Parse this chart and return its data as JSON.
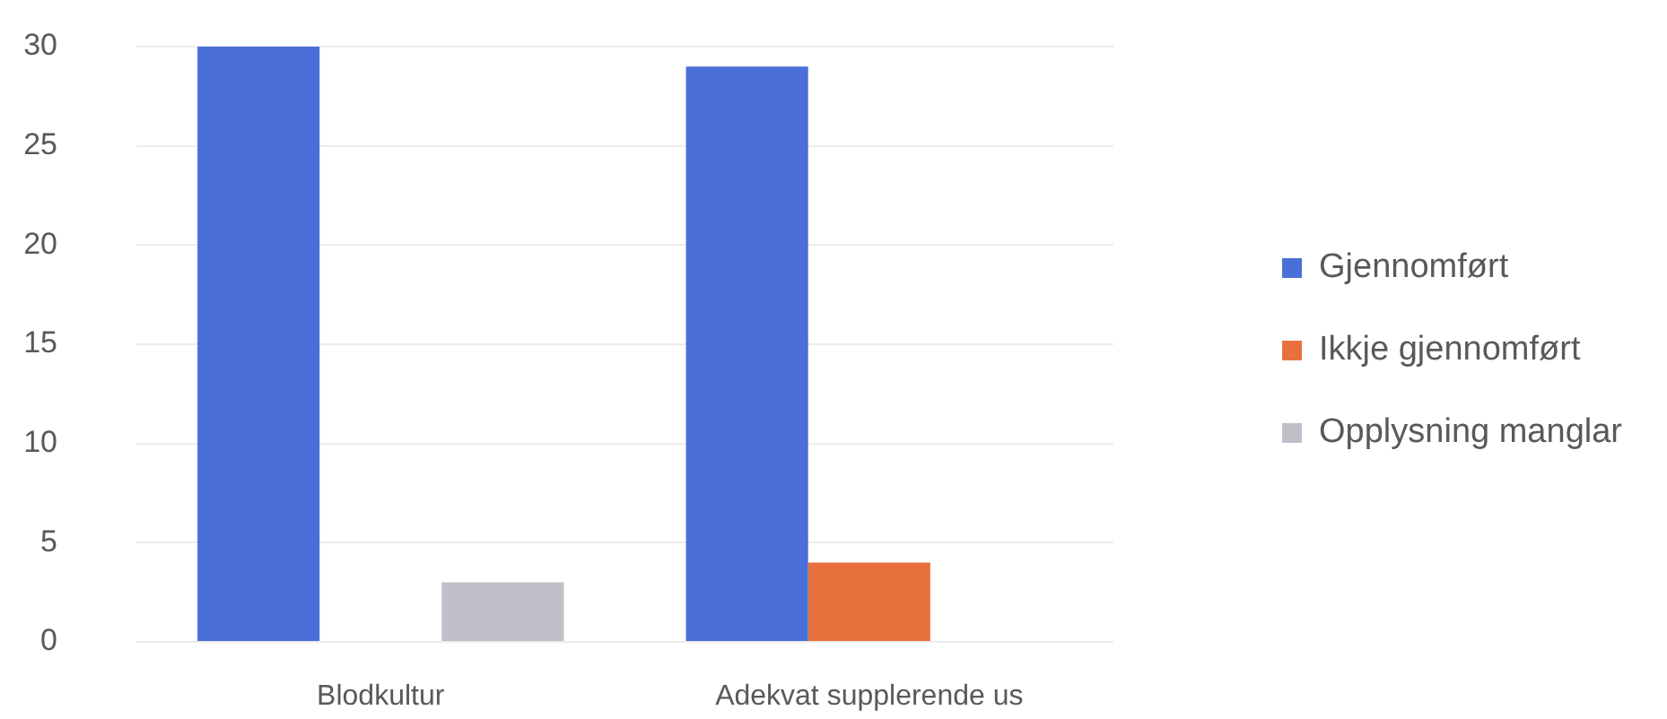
{
  "chart_data": {
    "type": "bar",
    "categories": [
      "Blodkultur",
      "Adekvat supplerende us"
    ],
    "series": [
      {
        "name": "Gjennomført",
        "color": "#4a6fd8",
        "values": [
          30,
          29
        ]
      },
      {
        "name": "Ikkje gjennomført",
        "color": "#e8703c",
        "values": [
          null,
          4
        ]
      },
      {
        "name": "Opplysning manglar",
        "color": "#c2bfc8",
        "values": [
          3,
          null
        ]
      }
    ],
    "ylim": [
      0,
      30
    ],
    "yticks": [
      0,
      5,
      10,
      15,
      20,
      25,
      30
    ],
    "grid": "y",
    "legend": "right"
  }
}
